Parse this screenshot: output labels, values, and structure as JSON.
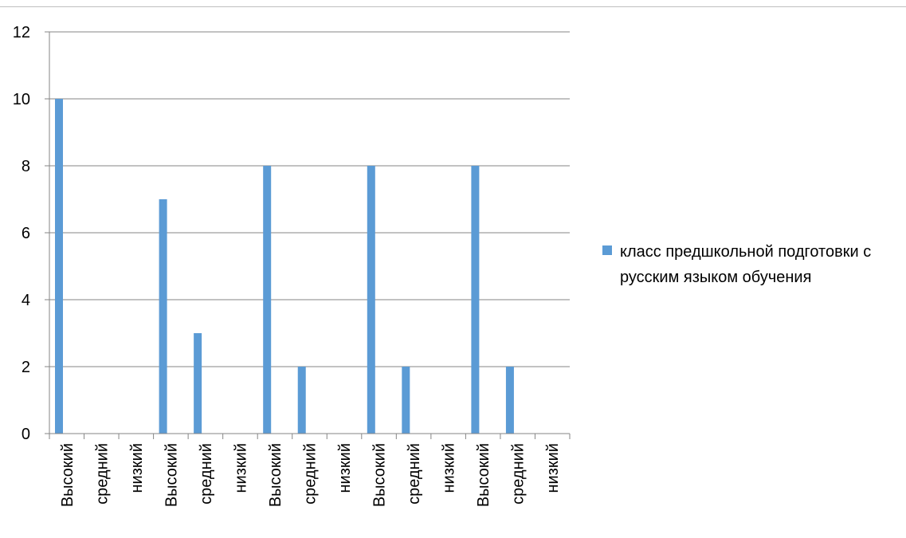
{
  "chart_data": {
    "type": "bar",
    "categories": [
      "Высокий",
      "средний",
      "низкий",
      "Высокий",
      "средний",
      "низкий",
      "Высокий",
      "средний",
      "низкий",
      "Высокий",
      "средний",
      "низкий",
      "Высокий",
      "средний",
      "низкий"
    ],
    "series": [
      {
        "name": "класс предшкольной подготовки с русским языком обучения",
        "values": [
          10,
          0,
          0,
          7,
          3,
          0,
          8,
          2,
          0,
          8,
          2,
          0,
          8,
          2,
          0
        ],
        "color": "#5b9bd5"
      }
    ],
    "ylim": [
      0,
      12
    ],
    "yticks": [
      0,
      2,
      4,
      6,
      8,
      10,
      12
    ],
    "grid": true,
    "legend_position": "right",
    "gridline_color": "#868686"
  }
}
